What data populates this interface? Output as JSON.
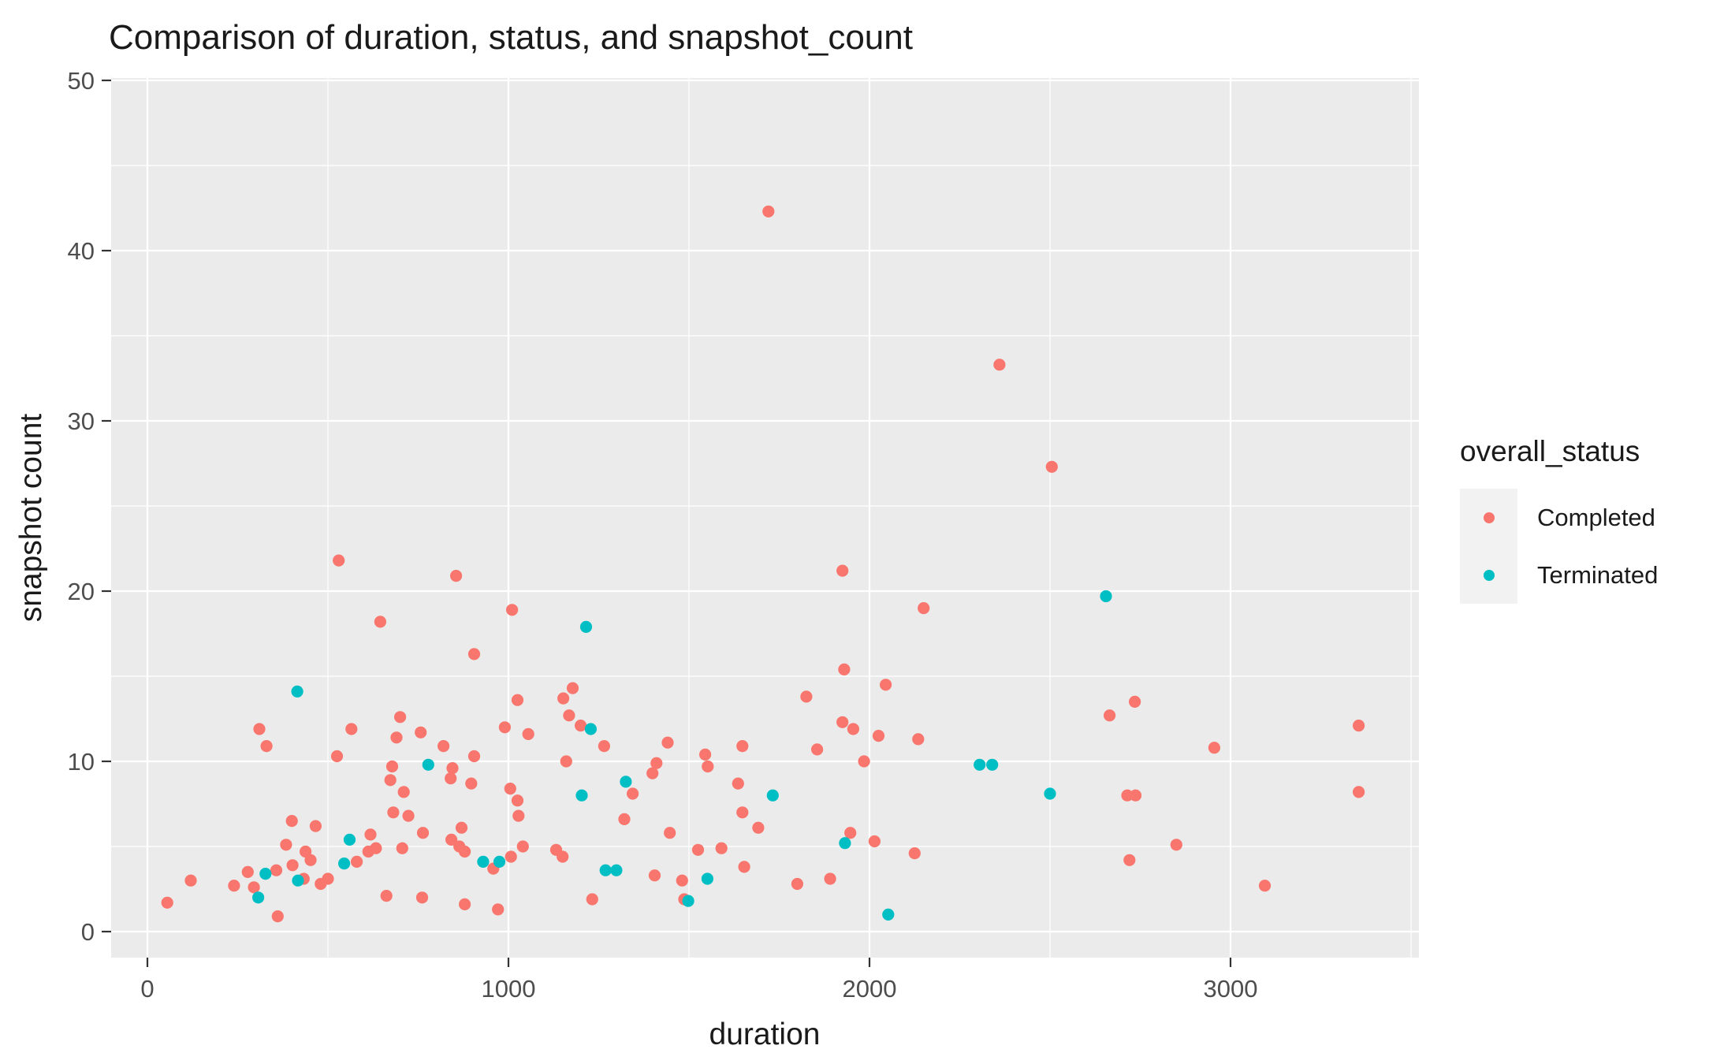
{
  "chart_data": {
    "type": "scatter",
    "title": "Comparison of duration, status, and snapshot_count",
    "xlabel": "duration",
    "ylabel": "snapshot count",
    "xlim": [
      -120,
      3520
    ],
    "ylim": [
      -1.7,
      50.4
    ],
    "x_ticks": [
      0,
      1000,
      2000,
      3000
    ],
    "y_ticks": [
      0,
      10,
      20,
      30,
      40,
      50
    ],
    "x_minor_ticks": [
      500,
      1500,
      2500,
      3500
    ],
    "y_minor_ticks": [
      5,
      15,
      25,
      35,
      45
    ],
    "grid": true,
    "panel_background": "#EBEBEB",
    "gridline_color": "#FFFFFF",
    "tick_label_color": "#4D4D4D",
    "axis_text_color": "#1a1a1a",
    "legend": {
      "title": "overall_status",
      "position": "right",
      "entries": [
        {
          "label": "Completed",
          "color": "#F8766D"
        },
        {
          "label": "Terminated",
          "color": "#00BFC4"
        }
      ]
    },
    "series": [
      {
        "name": "Completed",
        "color": "#F8766D",
        "points": [
          [
            55,
            1.7
          ],
          [
            120,
            3.0
          ],
          [
            240,
            2.7
          ],
          [
            278,
            3.5
          ],
          [
            295,
            2.6
          ],
          [
            310,
            11.9
          ],
          [
            330,
            10.9
          ],
          [
            357,
            3.6
          ],
          [
            361,
            0.9
          ],
          [
            384,
            5.1
          ],
          [
            400,
            6.5
          ],
          [
            402,
            3.9
          ],
          [
            433,
            3.1
          ],
          [
            438,
            4.7
          ],
          [
            452,
            4.2
          ],
          [
            466,
            6.2
          ],
          [
            480,
            2.8
          ],
          [
            500,
            3.1
          ],
          [
            525,
            10.3
          ],
          [
            530,
            21.8
          ],
          [
            565,
            11.9
          ],
          [
            580,
            4.1
          ],
          [
            612,
            4.7
          ],
          [
            618,
            5.7
          ],
          [
            633,
            4.9
          ],
          [
            645,
            18.2
          ],
          [
            662,
            2.1
          ],
          [
            673,
            8.9
          ],
          [
            678,
            9.7
          ],
          [
            681,
            7.0
          ],
          [
            690,
            11.4
          ],
          [
            700,
            12.6
          ],
          [
            706,
            4.9
          ],
          [
            710,
            8.2
          ],
          [
            723,
            6.8
          ],
          [
            757,
            11.7
          ],
          [
            761,
            2.0
          ],
          [
            763,
            5.8
          ],
          [
            820,
            10.9
          ],
          [
            840,
            9.0
          ],
          [
            842,
            5.4
          ],
          [
            845,
            9.6
          ],
          [
            855,
            20.9
          ],
          [
            864,
            5.0
          ],
          [
            870,
            6.1
          ],
          [
            879,
            4.7
          ],
          [
            879,
            1.6
          ],
          [
            897,
            8.7
          ],
          [
            905,
            16.3
          ],
          [
            905,
            10.3
          ],
          [
            958,
            3.7
          ],
          [
            971,
            1.3
          ],
          [
            990,
            12.0
          ],
          [
            1005,
            8.4
          ],
          [
            1007,
            4.4
          ],
          [
            1010,
            18.9
          ],
          [
            1025,
            13.6
          ],
          [
            1025,
            7.7
          ],
          [
            1028,
            6.8
          ],
          [
            1040,
            5.0
          ],
          [
            1055,
            11.6
          ],
          [
            1132,
            4.8
          ],
          [
            1150,
            4.4
          ],
          [
            1152,
            13.7
          ],
          [
            1160,
            10.0
          ],
          [
            1168,
            12.7
          ],
          [
            1178,
            14.3
          ],
          [
            1200,
            12.1
          ],
          [
            1232,
            1.9
          ],
          [
            1265,
            10.9
          ],
          [
            1321,
            6.6
          ],
          [
            1344,
            8.1
          ],
          [
            1399,
            9.3
          ],
          [
            1405,
            3.3
          ],
          [
            1410,
            9.9
          ],
          [
            1441,
            11.1
          ],
          [
            1447,
            5.8
          ],
          [
            1481,
            3.0
          ],
          [
            1487,
            1.9
          ],
          [
            1525,
            4.8
          ],
          [
            1545,
            10.4
          ],
          [
            1552,
            9.7
          ],
          [
            1590,
            4.9
          ],
          [
            1636,
            8.7
          ],
          [
            1648,
            10.9
          ],
          [
            1648,
            7.0
          ],
          [
            1653,
            3.8
          ],
          [
            1692,
            6.1
          ],
          [
            1720,
            42.3
          ],
          [
            1800,
            2.8
          ],
          [
            1825,
            13.8
          ],
          [
            1855,
            10.7
          ],
          [
            1891,
            3.1
          ],
          [
            1925,
            21.2
          ],
          [
            1925,
            12.3
          ],
          [
            1930,
            15.4
          ],
          [
            1947,
            5.8
          ],
          [
            1955,
            11.9
          ],
          [
            1985,
            10.0
          ],
          [
            2014,
            5.3
          ],
          [
            2025,
            11.5
          ],
          [
            2045,
            14.5
          ],
          [
            2125,
            4.6
          ],
          [
            2135,
            11.3
          ],
          [
            2150,
            19.0
          ],
          [
            2360,
            33.3
          ],
          [
            2505,
            27.3
          ],
          [
            2665,
            12.7
          ],
          [
            2714,
            8.0
          ],
          [
            2720,
            4.2
          ],
          [
            2735,
            13.5
          ],
          [
            2737,
            8.0
          ],
          [
            2850,
            5.1
          ],
          [
            2955,
            10.8
          ],
          [
            3095,
            2.7
          ],
          [
            3355,
            12.1
          ],
          [
            3355,
            8.2
          ]
        ]
      },
      {
        "name": "Terminated",
        "color": "#00BFC4",
        "points": [
          [
            307,
            2.0
          ],
          [
            327,
            3.4
          ],
          [
            415,
            14.1
          ],
          [
            417,
            3.0
          ],
          [
            545,
            4.0
          ],
          [
            560,
            5.4
          ],
          [
            778,
            9.8
          ],
          [
            930,
            4.1
          ],
          [
            975,
            4.1
          ],
          [
            1203,
            8.0
          ],
          [
            1215,
            17.9
          ],
          [
            1228,
            11.9
          ],
          [
            1269,
            3.6
          ],
          [
            1299,
            3.6
          ],
          [
            1325,
            8.8
          ],
          [
            1498,
            1.8
          ],
          [
            1551,
            3.1
          ],
          [
            1732,
            8.0
          ],
          [
            1932,
            5.2
          ],
          [
            2052,
            1.0
          ],
          [
            2305,
            9.8
          ],
          [
            2340,
            9.8
          ],
          [
            2500,
            8.1
          ],
          [
            2655,
            19.7
          ]
        ]
      }
    ]
  }
}
